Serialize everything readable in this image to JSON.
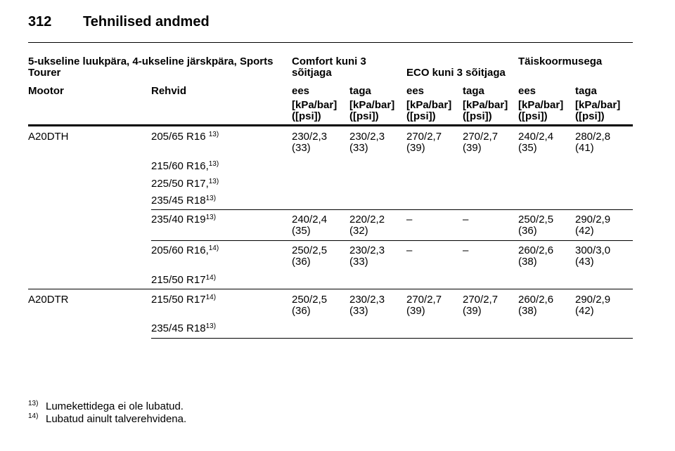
{
  "header": {
    "page_number": "312",
    "title": "Tehnilised andmed"
  },
  "table": {
    "group_header": {
      "body": "5-ukseline luukpära, 4-ukseline järskpära, Sports Tourer",
      "comfort": "Comfort kuni 3 sõitjaga",
      "eco": "ECO kuni 3 sõitjaga",
      "full": "Täiskoormusega"
    },
    "columns": [
      "Mootor",
      "Rehvid",
      "ees",
      "taga",
      "ees",
      "taga",
      "ees",
      "taga"
    ],
    "units": [
      "[kPa/bar]\n([psi])",
      "[kPa/bar]\n([psi])",
      "[kPa/bar]\n([psi])",
      "[kPa/bar]\n([psi])",
      "[kPa/bar]\n([psi])",
      "[kPa/bar]\n([psi])"
    ],
    "groups": [
      {
        "engine": "A20DTH",
        "tires": [
          {
            "text": "205/65 R16 ",
            "note": "13)"
          },
          {
            "text": "215/60 R16,",
            "note": "13)"
          },
          {
            "text": "225/50 R17,",
            "note": "13)"
          },
          {
            "text": "235/45 R18",
            "note": "13)"
          }
        ],
        "pressures": [
          "230/2,3\n(33)",
          "230/2,3\n(33)",
          "270/2,7\n(39)",
          "270/2,7\n(39)",
          "240/2,4\n(35)",
          "280/2,8\n(41)"
        ]
      },
      {
        "tires": [
          {
            "text": "235/40 R19",
            "note": "13)"
          }
        ],
        "pressures": [
          "240/2,4\n(35)",
          "220/2,2\n(32)",
          "–",
          "–",
          "250/2,5\n(36)",
          "290/2,9\n(42)"
        ]
      },
      {
        "tires": [
          {
            "text": "205/60 R16,",
            "note": "14)"
          },
          {
            "text": "215/50 R17",
            "note": "14)"
          }
        ],
        "pressures": [
          "250/2,5\n(36)",
          "230/2,3\n(33)",
          "–",
          "–",
          "260/2,6\n(38)",
          "300/3,0\n(43)"
        ]
      },
      {
        "engine": "A20DTR",
        "tires": [
          {
            "text": "215/50 R17",
            "note": "14)"
          },
          {
            "text": "235/45 R18",
            "note": "13)"
          }
        ],
        "pressures": [
          "250/2,5\n(36)",
          "230/2,3\n(33)",
          "270/2,7\n(39)",
          "270/2,7\n(39)",
          "260/2,6\n(38)",
          "290/2,9\n(42)"
        ]
      }
    ]
  },
  "footnotes": [
    {
      "mark": "13)",
      "text": "Lumekettidega ei ole lubatud."
    },
    {
      "mark": "14)",
      "text": "Lubatud ainult talverehvidena."
    }
  ]
}
